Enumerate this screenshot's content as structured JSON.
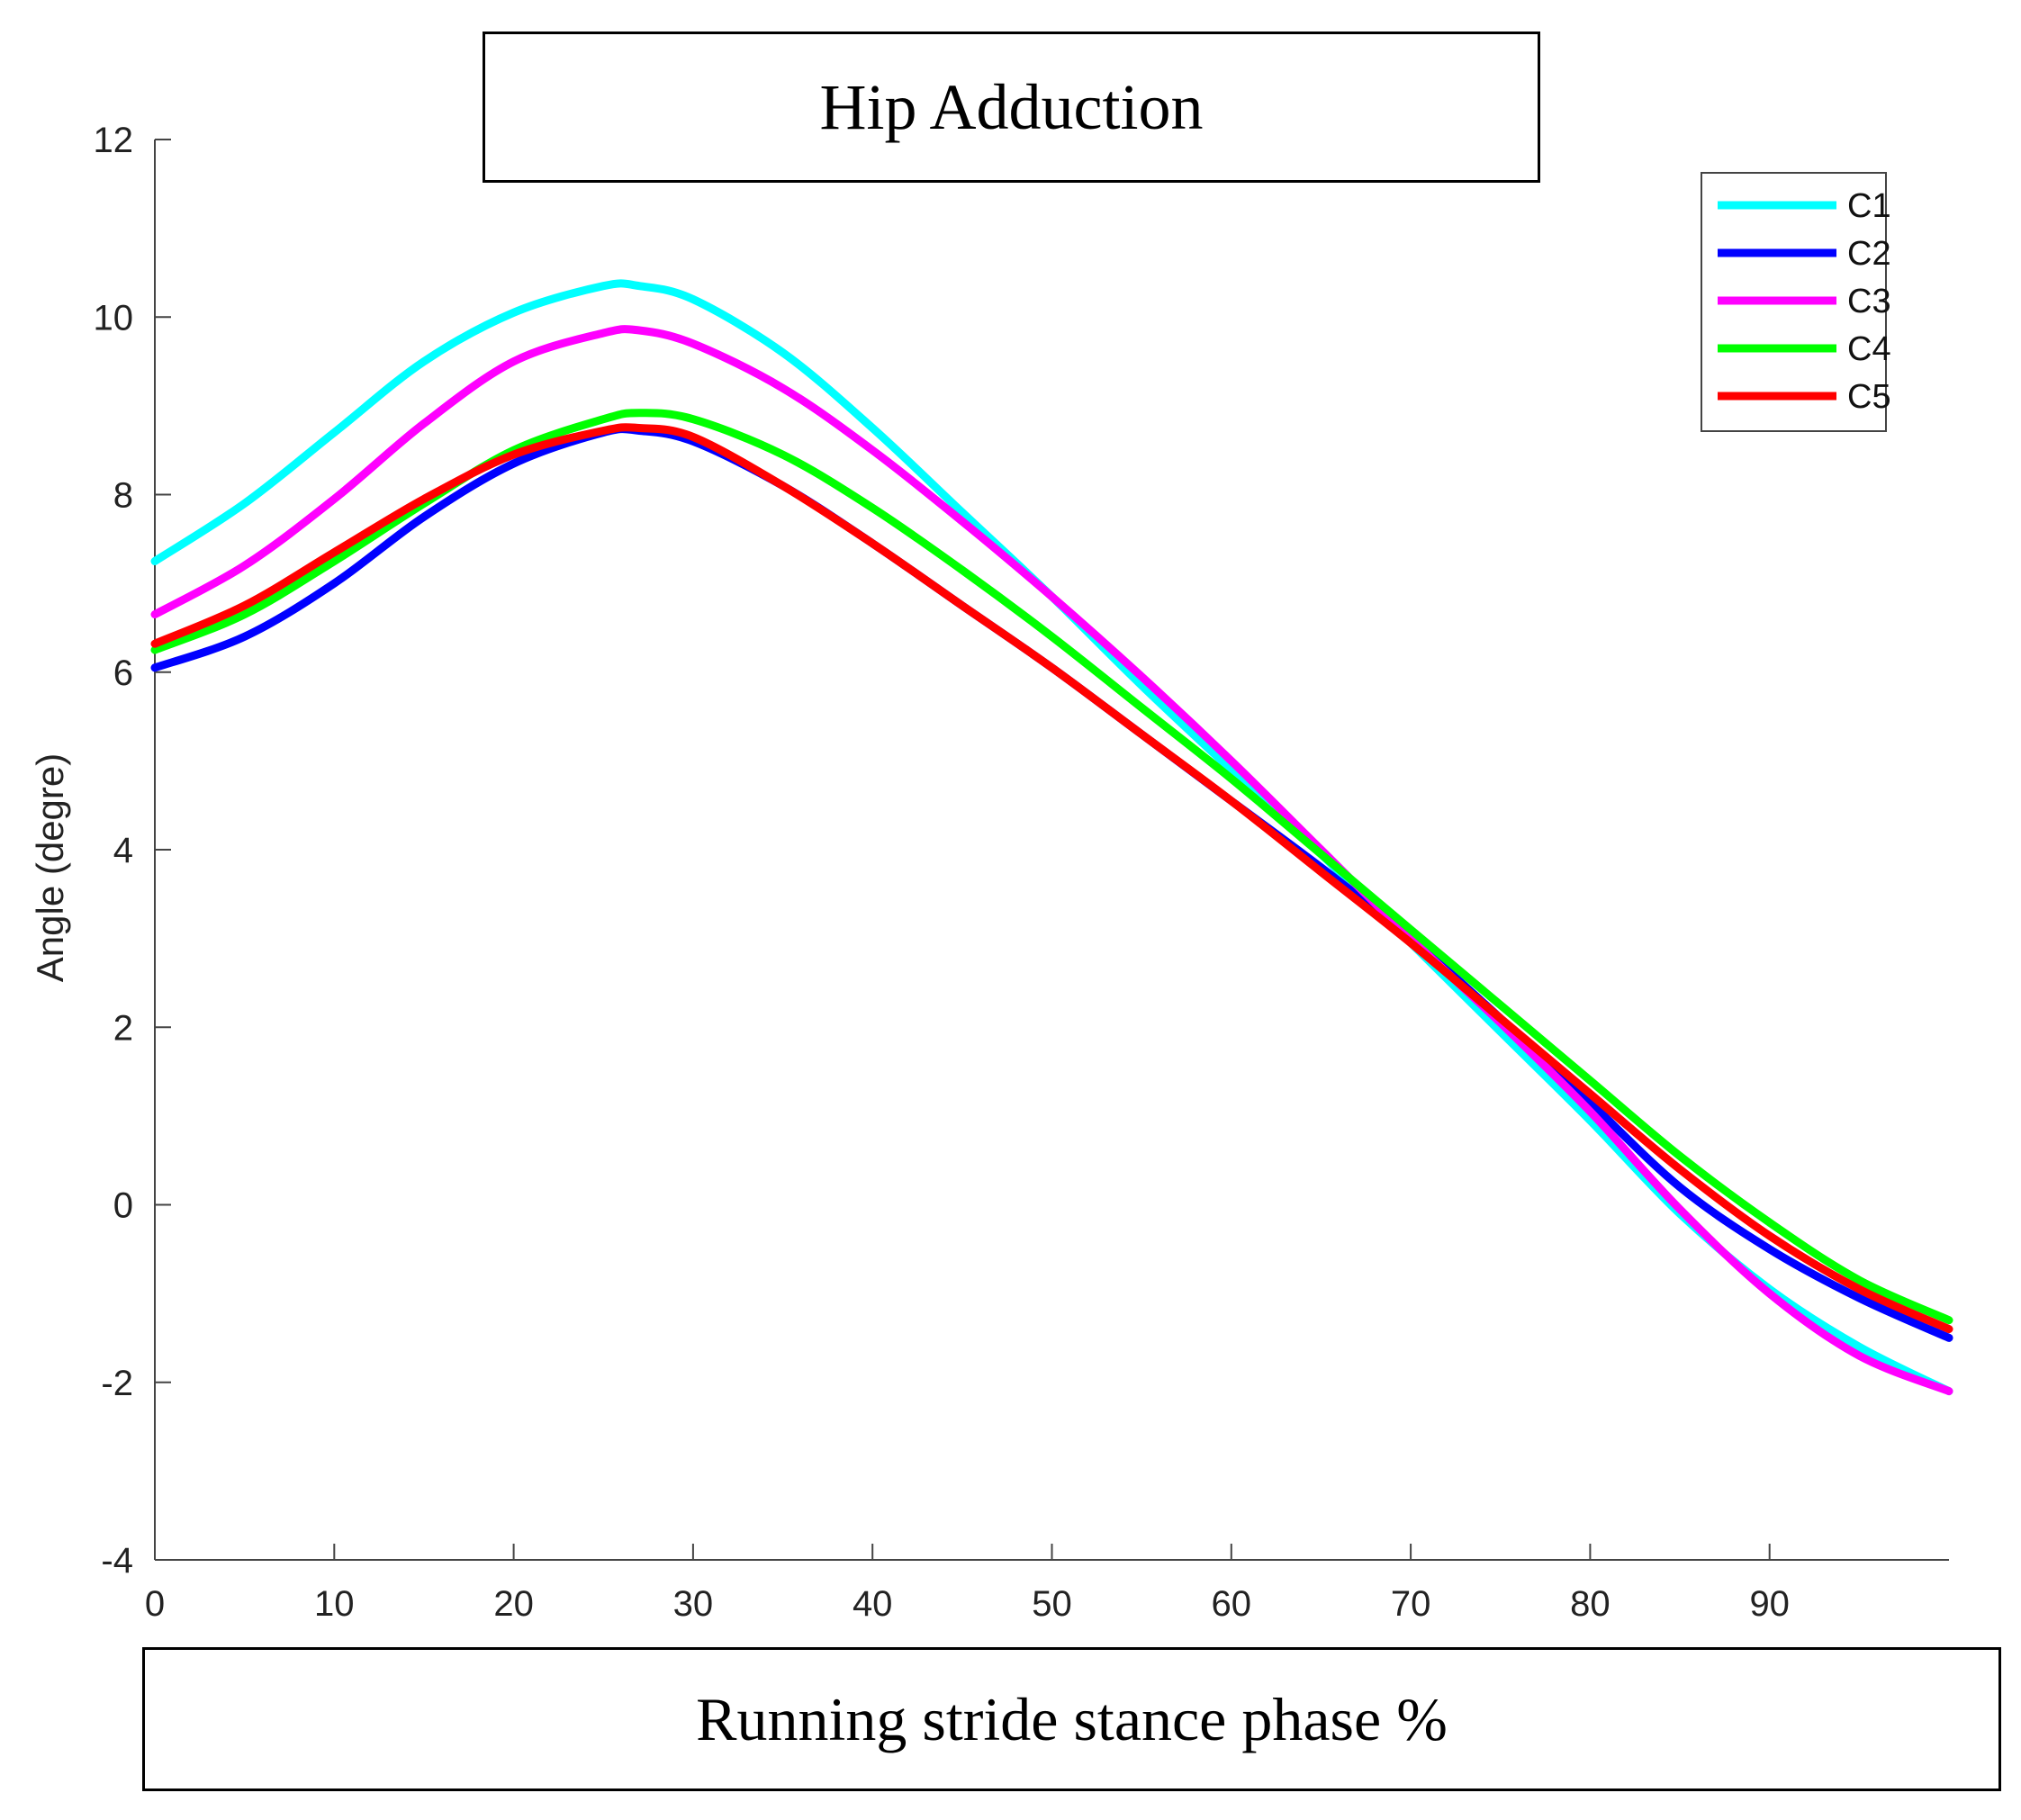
{
  "chart_data": {
    "type": "line",
    "title": "Hip Adduction",
    "xlabel": "Running stride stance phase %",
    "ylabel": "Angle (degre)",
    "xlim": [
      0,
      100
    ],
    "ylim": [
      -4,
      12
    ],
    "xticks": [
      0,
      10,
      20,
      30,
      40,
      50,
      60,
      70,
      80,
      90
    ],
    "yticks": [
      -4,
      -2,
      0,
      2,
      4,
      6,
      8,
      10,
      12
    ],
    "grid": false,
    "legend_position": "top-right",
    "x": [
      0,
      5,
      10,
      15,
      20,
      25,
      27,
      30,
      35,
      40,
      45,
      50,
      55,
      60,
      65,
      70,
      75,
      80,
      85,
      90,
      95,
      100
    ],
    "series": [
      {
        "name": "C1",
        "color": "#00ffff",
        "values": [
          7.25,
          7.9,
          8.7,
          9.5,
          10.05,
          10.35,
          10.35,
          10.2,
          9.6,
          8.75,
          7.8,
          6.85,
          5.85,
          4.9,
          3.95,
          2.95,
          1.95,
          0.95,
          -0.1,
          -0.95,
          -1.6,
          -2.1
        ]
      },
      {
        "name": "C2",
        "color": "#0000ff",
        "values": [
          6.05,
          6.4,
          7.0,
          7.75,
          8.35,
          8.7,
          8.72,
          8.6,
          8.1,
          7.45,
          6.75,
          6.05,
          5.3,
          4.55,
          3.8,
          3.0,
          2.1,
          1.15,
          0.2,
          -0.5,
          -1.05,
          -1.5
        ]
      },
      {
        "name": "C3",
        "color": "#ff00ff",
        "values": [
          6.65,
          7.2,
          7.95,
          8.8,
          9.5,
          9.82,
          9.85,
          9.7,
          9.2,
          8.5,
          7.7,
          6.85,
          5.95,
          5.0,
          4.0,
          3.0,
          2.05,
          1.05,
          -0.05,
          -1.0,
          -1.7,
          -2.1
        ]
      },
      {
        "name": "C4",
        "color": "#00ff00",
        "values": [
          6.25,
          6.65,
          7.25,
          7.9,
          8.5,
          8.85,
          8.92,
          8.85,
          8.45,
          7.85,
          7.15,
          6.4,
          5.6,
          4.8,
          3.95,
          3.1,
          2.25,
          1.4,
          0.55,
          -0.2,
          -0.85,
          -1.3
        ]
      },
      {
        "name": "C5",
        "color": "#ff0000",
        "values": [
          6.32,
          6.75,
          7.35,
          7.95,
          8.45,
          8.72,
          8.75,
          8.65,
          8.1,
          7.45,
          6.75,
          6.05,
          5.3,
          4.55,
          3.75,
          2.95,
          2.1,
          1.25,
          0.4,
          -0.35,
          -0.95,
          -1.4
        ]
      }
    ]
  }
}
